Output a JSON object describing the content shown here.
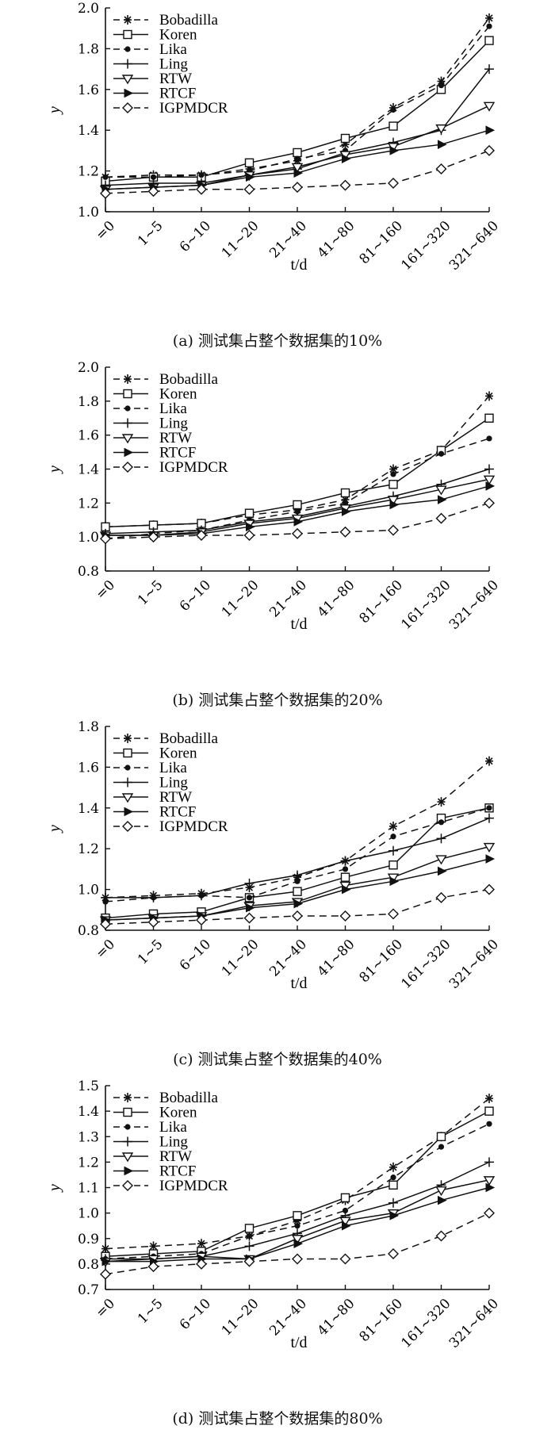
{
  "captions": [
    "(a) 测试集占整个数据集的10%",
    "(b) 测试集占整个数据集的20%",
    "(c) 测试集占整个数据集的40%",
    "(d) 测试集占整个数据集的80%"
  ],
  "chart_data": [
    {
      "type": "line",
      "categories": [
        "=0",
        "1~5",
        "6~10",
        "11~20",
        "21~40",
        "41~80",
        "81~160",
        "161~320",
        "321~640"
      ],
      "xlabel": "t/d",
      "ylabel": "y",
      "ylim": [
        1.0,
        2.0
      ],
      "yticks": [
        "1.0",
        "1.2",
        "1.4",
        "1.6",
        "1.8",
        "2.0"
      ],
      "legend_position": "top-left",
      "grid": false,
      "series": [
        {
          "name": "Bobadilla",
          "marker": "star",
          "dashed": true,
          "values": [
            1.17,
            1.18,
            1.18,
            1.21,
            1.25,
            1.33,
            1.51,
            1.64,
            1.95
          ]
        },
        {
          "name": "Koren",
          "marker": "square",
          "dashed": false,
          "values": [
            1.15,
            1.17,
            1.17,
            1.24,
            1.29,
            1.36,
            1.42,
            1.6,
            1.84
          ]
        },
        {
          "name": "Lika",
          "marker": "dot",
          "dashed": true,
          "values": [
            1.17,
            1.17,
            1.18,
            1.2,
            1.26,
            1.3,
            1.5,
            1.62,
            1.91
          ]
        },
        {
          "name": "Ling",
          "marker": "plus",
          "dashed": false,
          "values": [
            1.13,
            1.14,
            1.14,
            1.18,
            1.21,
            1.29,
            1.34,
            1.4,
            1.7
          ]
        },
        {
          "name": "RTW",
          "marker": "triangle-down",
          "dashed": false,
          "values": [
            1.11,
            1.12,
            1.13,
            1.18,
            1.22,
            1.28,
            1.32,
            1.41,
            1.52
          ]
        },
        {
          "name": "RTCF",
          "marker": "triangle-right",
          "dashed": false,
          "values": [
            1.11,
            1.12,
            1.13,
            1.17,
            1.19,
            1.26,
            1.3,
            1.33,
            1.4
          ]
        },
        {
          "name": "IGPMDCR",
          "marker": "diamond",
          "dashed": true,
          "values": [
            1.09,
            1.1,
            1.11,
            1.11,
            1.12,
            1.13,
            1.14,
            1.21,
            1.3
          ]
        }
      ]
    },
    {
      "type": "line",
      "categories": [
        "=0",
        "1~5",
        "6~10",
        "11~20",
        "21~40",
        "41~80",
        "81~160",
        "161~320",
        "321~640"
      ],
      "xlabel": "t/d",
      "ylabel": "y",
      "ylim": [
        0.8,
        2.0
      ],
      "yticks": [
        "0.8",
        "1.0",
        "1.2",
        "1.4",
        "1.6",
        "1.8",
        "2.0"
      ],
      "legend_position": "top-left",
      "grid": false,
      "series": [
        {
          "name": "Bobadilla",
          "marker": "star",
          "dashed": true,
          "values": [
            1.06,
            1.07,
            1.08,
            1.13,
            1.16,
            1.22,
            1.4,
            1.51,
            1.83
          ]
        },
        {
          "name": "Koren",
          "marker": "square",
          "dashed": false,
          "values": [
            1.06,
            1.07,
            1.08,
            1.14,
            1.19,
            1.26,
            1.31,
            1.51,
            1.7
          ]
        },
        {
          "name": "Lika",
          "marker": "dot",
          "dashed": true,
          "values": [
            0.99,
            1.02,
            1.04,
            1.1,
            1.15,
            1.2,
            1.37,
            1.49,
            1.58
          ]
        },
        {
          "name": "Ling",
          "marker": "plus",
          "dashed": false,
          "values": [
            1.02,
            1.03,
            1.04,
            1.09,
            1.12,
            1.18,
            1.24,
            1.31,
            1.4
          ]
        },
        {
          "name": "RTW",
          "marker": "triangle-down",
          "dashed": false,
          "values": [
            1.01,
            1.01,
            1.03,
            1.08,
            1.11,
            1.17,
            1.22,
            1.28,
            1.34
          ]
        },
        {
          "name": "RTCF",
          "marker": "triangle-right",
          "dashed": false,
          "values": [
            1.01,
            1.01,
            1.02,
            1.06,
            1.09,
            1.15,
            1.19,
            1.22,
            1.3
          ]
        },
        {
          "name": "IGPMDCR",
          "marker": "diamond",
          "dashed": true,
          "values": [
            0.99,
            1.0,
            1.01,
            1.01,
            1.02,
            1.03,
            1.04,
            1.11,
            1.2
          ]
        }
      ]
    },
    {
      "type": "line",
      "categories": [
        "=0",
        "1~5",
        "6~10",
        "11~20",
        "21~40",
        "41~80",
        "81~160",
        "161~320",
        "321~640"
      ],
      "xlabel": "t/d",
      "ylabel": "y",
      "ylim": [
        0.8,
        1.8
      ],
      "yticks": [
        "0.8",
        "1.0",
        "1.2",
        "1.4",
        "1.6",
        "1.8"
      ],
      "legend_position": "top-left",
      "grid": false,
      "series": [
        {
          "name": "Bobadilla",
          "marker": "star",
          "dashed": true,
          "values": [
            0.96,
            0.97,
            0.98,
            1.01,
            1.06,
            1.14,
            1.31,
            1.43,
            1.63
          ]
        },
        {
          "name": "Koren",
          "marker": "square",
          "dashed": false,
          "values": [
            0.86,
            0.88,
            0.89,
            0.96,
            0.99,
            1.06,
            1.12,
            1.35,
            1.4
          ]
        },
        {
          "name": "Lika",
          "marker": "dot",
          "dashed": true,
          "values": [
            0.94,
            0.96,
            0.97,
            0.96,
            1.04,
            1.1,
            1.26,
            1.33,
            1.4
          ]
        },
        {
          "name": "Ling",
          "marker": "plus",
          "dashed": false,
          "values": [
            0.96,
            0.96,
            0.97,
            1.03,
            1.07,
            1.14,
            1.19,
            1.25,
            1.35
          ]
        },
        {
          "name": "RTW",
          "marker": "triangle-down",
          "dashed": false,
          "values": [
            0.85,
            0.86,
            0.87,
            0.92,
            0.94,
            1.02,
            1.06,
            1.15,
            1.21
          ]
        },
        {
          "name": "RTCF",
          "marker": "triangle-right",
          "dashed": false,
          "values": [
            0.85,
            0.86,
            0.87,
            0.91,
            0.93,
            1.0,
            1.04,
            1.09,
            1.15
          ]
        },
        {
          "name": "IGPMDCR",
          "marker": "diamond",
          "dashed": true,
          "values": [
            0.83,
            0.84,
            0.85,
            0.86,
            0.87,
            0.87,
            0.88,
            0.96,
            1.0
          ]
        }
      ]
    },
    {
      "type": "line",
      "categories": [
        "=0",
        "1~5",
        "6~10",
        "11~20",
        "21~40",
        "41~80",
        "81~160",
        "161~320",
        "321~640"
      ],
      "xlabel": "t/d",
      "ylabel": "y",
      "ylim": [
        0.7,
        1.5
      ],
      "yticks": [
        "0.7",
        "0.8",
        "0.9",
        "1.0",
        "1.1",
        "1.2",
        "1.3",
        "1.4",
        "1.5"
      ],
      "legend_position": "top-left",
      "grid": false,
      "series": [
        {
          "name": "Bobadilla",
          "marker": "star",
          "dashed": true,
          "values": [
            0.86,
            0.87,
            0.88,
            0.91,
            0.97,
            1.05,
            1.18,
            1.3,
            1.45
          ]
        },
        {
          "name": "Koren",
          "marker": "square",
          "dashed": false,
          "values": [
            0.83,
            0.84,
            0.85,
            0.94,
            0.99,
            1.06,
            1.11,
            1.3,
            1.4
          ]
        },
        {
          "name": "Lika",
          "marker": "dot",
          "dashed": true,
          "values": [
            0.82,
            0.83,
            0.84,
            0.91,
            0.95,
            1.01,
            1.14,
            1.26,
            1.35
          ]
        },
        {
          "name": "Ling",
          "marker": "plus",
          "dashed": false,
          "values": [
            0.82,
            0.82,
            0.83,
            0.87,
            0.92,
            0.99,
            1.04,
            1.11,
            1.2
          ]
        },
        {
          "name": "RTW",
          "marker": "triangle-down",
          "dashed": false,
          "values": [
            0.81,
            0.82,
            0.83,
            0.82,
            0.9,
            0.97,
            1.0,
            1.09,
            1.13
          ]
        },
        {
          "name": "RTCF",
          "marker": "triangle-right",
          "dashed": false,
          "values": [
            0.81,
            0.81,
            0.82,
            0.82,
            0.88,
            0.95,
            0.99,
            1.05,
            1.1
          ]
        },
        {
          "name": "IGPMDCR",
          "marker": "diamond",
          "dashed": true,
          "values": [
            0.76,
            0.79,
            0.8,
            0.81,
            0.82,
            0.82,
            0.84,
            0.91,
            1.0
          ]
        }
      ]
    }
  ]
}
